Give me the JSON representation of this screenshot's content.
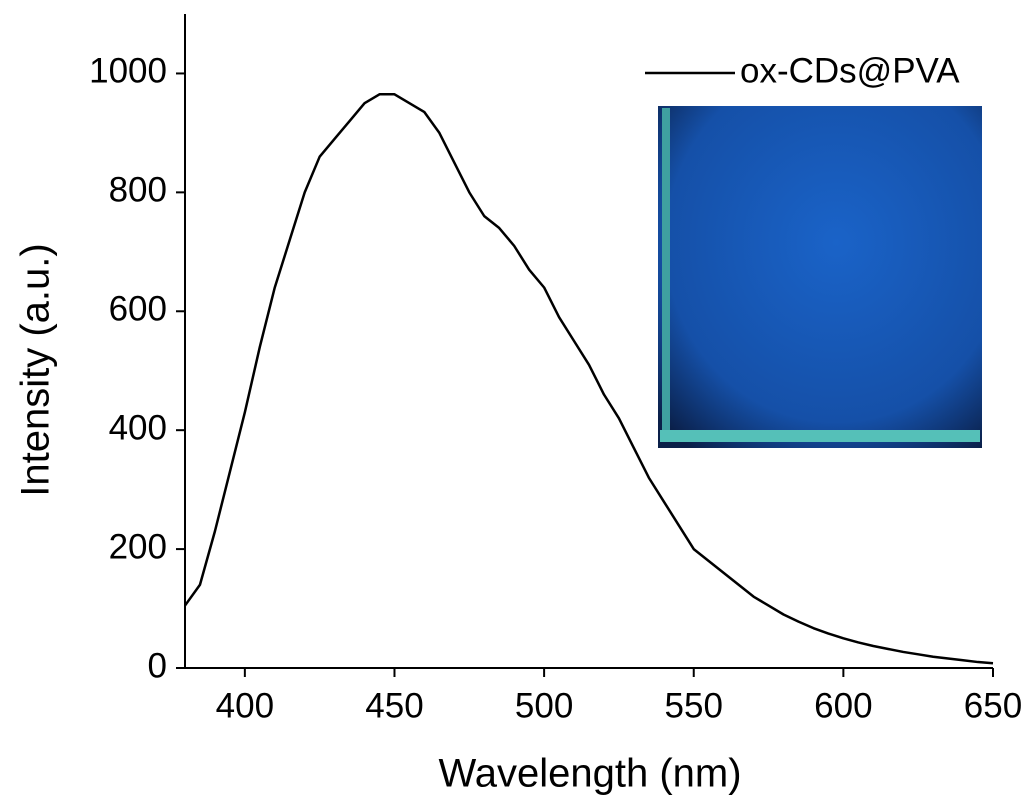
{
  "chart_data": {
    "type": "line",
    "xlabel": "Wavelength (nm)",
    "ylabel": "Intensity (a.u.)",
    "x": [
      380,
      385,
      390,
      395,
      400,
      405,
      410,
      415,
      420,
      425,
      430,
      435,
      440,
      445,
      450,
      455,
      460,
      465,
      470,
      475,
      480,
      485,
      490,
      495,
      500,
      505,
      510,
      515,
      520,
      525,
      530,
      535,
      540,
      545,
      550,
      555,
      560,
      565,
      570,
      575,
      580,
      585,
      590,
      595,
      600,
      605,
      610,
      615,
      620,
      625,
      630,
      635,
      640,
      645,
      650
    ],
    "series": [
      {
        "name": "ox-CDs@PVA",
        "color": "#000000",
        "values": [
          105,
          140,
          230,
          330,
          430,
          540,
          640,
          720,
          800,
          860,
          890,
          920,
          950,
          965,
          965,
          950,
          935,
          900,
          850,
          800,
          760,
          740,
          710,
          670,
          640,
          590,
          550,
          510,
          460,
          420,
          370,
          320,
          280,
          240,
          200,
          180,
          160,
          140,
          120,
          105,
          90,
          78,
          67,
          58,
          50,
          43,
          37,
          32,
          27,
          23,
          19,
          16,
          13,
          10,
          8
        ]
      }
    ],
    "xlim": [
      380,
      650
    ],
    "xticks": [
      400,
      450,
      500,
      550,
      600,
      650
    ],
    "ylim": [
      0,
      1100
    ],
    "yticks": [
      0,
      200,
      400,
      600,
      800,
      1000
    ],
    "legend": "top-right"
  }
}
